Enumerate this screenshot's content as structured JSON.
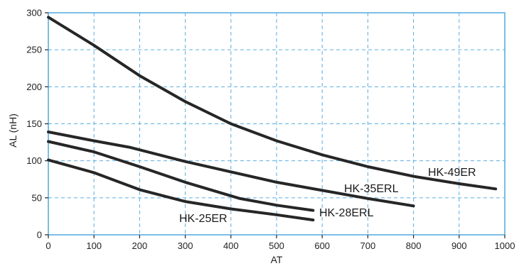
{
  "chart_data": {
    "type": "line",
    "xlabel": "AT",
    "ylabel": "AL (nH)",
    "xlim": [
      0,
      1000
    ],
    "ylim": [
      0,
      300
    ],
    "x_ticks": [
      0,
      100,
      200,
      300,
      400,
      500,
      600,
      700,
      800,
      900,
      1000
    ],
    "y_ticks": [
      0,
      50,
      100,
      150,
      200,
      250,
      300
    ],
    "grid": true,
    "colors": {
      "grid": "#5aaee0",
      "line": "#262626"
    },
    "series": [
      {
        "name": "HK-49ER",
        "x": [
          0,
          100,
          200,
          300,
          400,
          500,
          600,
          700,
          800,
          900,
          980
        ],
        "y": [
          294,
          256,
          215,
          180,
          150,
          127,
          108,
          92,
          79,
          69,
          62
        ]
      },
      {
        "name": "HK-35ERL",
        "x": [
          0,
          100,
          180,
          300,
          400,
          500,
          600,
          700,
          800
        ],
        "y": [
          139,
          127,
          118,
          99,
          85,
          71,
          60,
          49,
          39
        ]
      },
      {
        "name": "HK-28ERL",
        "x": [
          0,
          100,
          200,
          300,
          420,
          500,
          580
        ],
        "y": [
          126,
          112,
          92,
          71,
          49,
          40,
          33
        ]
      },
      {
        "name": "HK-25ER",
        "x": [
          0,
          100,
          200,
          300,
          400,
          500,
          580
        ],
        "y": [
          101,
          84,
          61,
          45,
          35,
          27,
          20
        ]
      }
    ]
  }
}
